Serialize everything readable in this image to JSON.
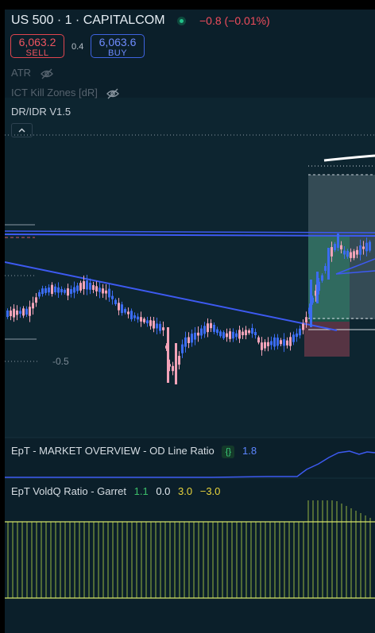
{
  "header": {
    "symbol": "US 500 · 1 · CAPITALCOM",
    "change": "−0.8 (−0.01%)",
    "sell_price": "6,063.2",
    "sell_label": "SELL",
    "spread": "0.4",
    "buy_price": "6,063.6",
    "buy_label": "BUY",
    "live_icon": "market-open-dot"
  },
  "indicators": {
    "atr": "ATR",
    "ict": "ICT Kill Zones [dR]",
    "dr_idr": "DR/IDR V1.5",
    "hidden_icon": "eye-off-icon",
    "collapse_icon": "chevron-up-icon"
  },
  "price_pane": {
    "level_label": "-0.5"
  },
  "market_overview": {
    "title": "EpT - MARKET OVERVIEW - OD Line Ratio",
    "value": "1.8"
  },
  "voldq": {
    "title": "EpT VoldQ Ratio - Garret",
    "v1": "1.1",
    "v2": "0.0",
    "v3": "3.0",
    "v4": "−3.0"
  },
  "colors": {
    "background": "#0b1f2a",
    "up_candle": "#3b6cf0",
    "down_candle": "#f2a3b8",
    "trendline": "#3d5af1",
    "sell": "#e0454f",
    "buy": "#3e63e0",
    "voldq_bars": "#b7d94a"
  }
}
